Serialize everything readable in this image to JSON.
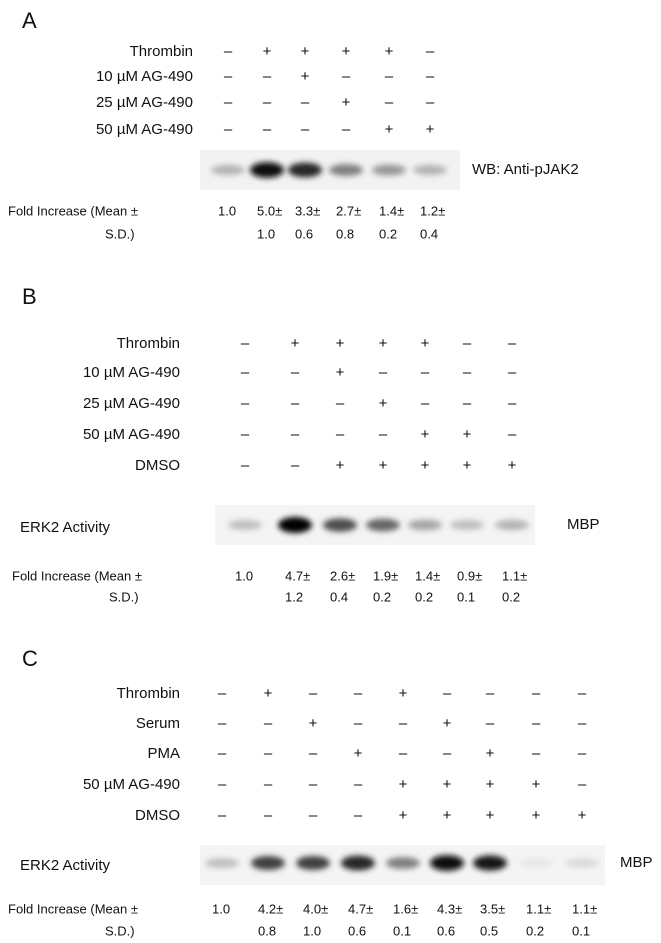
{
  "panels": [
    {
      "label": "A",
      "rows": [
        {
          "name": "Thrombin",
          "signs": [
            "–",
            "+",
            "+",
            "+",
            "+",
            "–"
          ]
        },
        {
          "name": "10 µM AG-490",
          "signs": [
            "–",
            "–",
            "+",
            "–",
            "–",
            "–"
          ]
        },
        {
          "name": "25 µM AG-490",
          "signs": [
            "–",
            "–",
            "–",
            "+",
            "–",
            "–"
          ]
        },
        {
          "name": "50 µM AG-490",
          "signs": [
            "–",
            "–",
            "–",
            "–",
            "+",
            "+"
          ]
        }
      ],
      "blot_label": "WB: Anti-pJAK2",
      "fold_label": [
        "Fold Increase (Mean ±",
        "S.D.)"
      ],
      "fold": [
        [
          "1.0"
        ],
        [
          "5.0±",
          "1.0"
        ],
        [
          "3.3±",
          "0.6"
        ],
        [
          "2.7±",
          "0.8"
        ],
        [
          "1.4±",
          "0.2"
        ],
        [
          "1.2±",
          "0.4"
        ]
      ]
    },
    {
      "label": "B",
      "rows": [
        {
          "name": "Thrombin",
          "signs": [
            "–",
            "+",
            "+",
            "+",
            "+",
            "–",
            "–"
          ]
        },
        {
          "name": "10 µM AG-490",
          "signs": [
            "–",
            "–",
            "+",
            "–",
            "–",
            "–",
            "–"
          ]
        },
        {
          "name": "25 µM AG-490",
          "signs": [
            "–",
            "–",
            "–",
            "+",
            "–",
            "–",
            "–"
          ]
        },
        {
          "name": "50 µM AG-490",
          "signs": [
            "–",
            "–",
            "–",
            "–",
            "+",
            "+",
            "–"
          ]
        },
        {
          "name": "DMSO",
          "signs": [
            "–",
            "–",
            "+",
            "+",
            "+",
            "+",
            "+"
          ]
        }
      ],
      "lane_label": "ERK2 Activity",
      "blot_label": "MBP",
      "fold_label": [
        "Fold Increase (Mean ±",
        "S.D.)"
      ],
      "fold": [
        [
          "1.0"
        ],
        [
          "4.7±",
          "1.2"
        ],
        [
          "2.6±",
          "0.4"
        ],
        [
          "1.9±",
          "0.2"
        ],
        [
          "1.4±",
          "0.2"
        ],
        [
          "0.9±",
          "0.1"
        ],
        [
          "1.1±",
          "0.2"
        ]
      ]
    },
    {
      "label": "C",
      "rows": [
        {
          "name": "Thrombin",
          "signs": [
            "–",
            "+",
            "–",
            "–",
            "+",
            "–",
            "–",
            "–",
            "–"
          ]
        },
        {
          "name": "Serum",
          "signs": [
            "–",
            "–",
            "+",
            "–",
            "–",
            "+",
            "–",
            "–",
            "–"
          ]
        },
        {
          "name": "PMA",
          "signs": [
            "–",
            "–",
            "–",
            "+",
            "–",
            "–",
            "+",
            "–",
            "–"
          ]
        },
        {
          "name": "50 µM AG-490",
          "signs": [
            "–",
            "–",
            "–",
            "–",
            "+",
            "+",
            "+",
            "+",
            "–"
          ]
        },
        {
          "name": "DMSO",
          "signs": [
            "–",
            "–",
            "–",
            "–",
            "+",
            "+",
            "+",
            "+",
            "+"
          ]
        }
      ],
      "lane_label": "ERK2 Activity",
      "blot_label": "MBP",
      "fold_label": [
        "Fold Increase (Mean ±",
        "S.D.)"
      ],
      "fold": [
        [
          "1.0"
        ],
        [
          "4.2±",
          "0.8"
        ],
        [
          "4.0±",
          "1.0"
        ],
        [
          "4.7±",
          "0.6"
        ],
        [
          "1.6±",
          "0.1"
        ],
        [
          "4.3±",
          "0.6"
        ],
        [
          "3.5±",
          "0.5"
        ],
        [
          "1.1±",
          "0.2"
        ],
        [
          "1.1±",
          "0.1"
        ]
      ]
    }
  ]
}
